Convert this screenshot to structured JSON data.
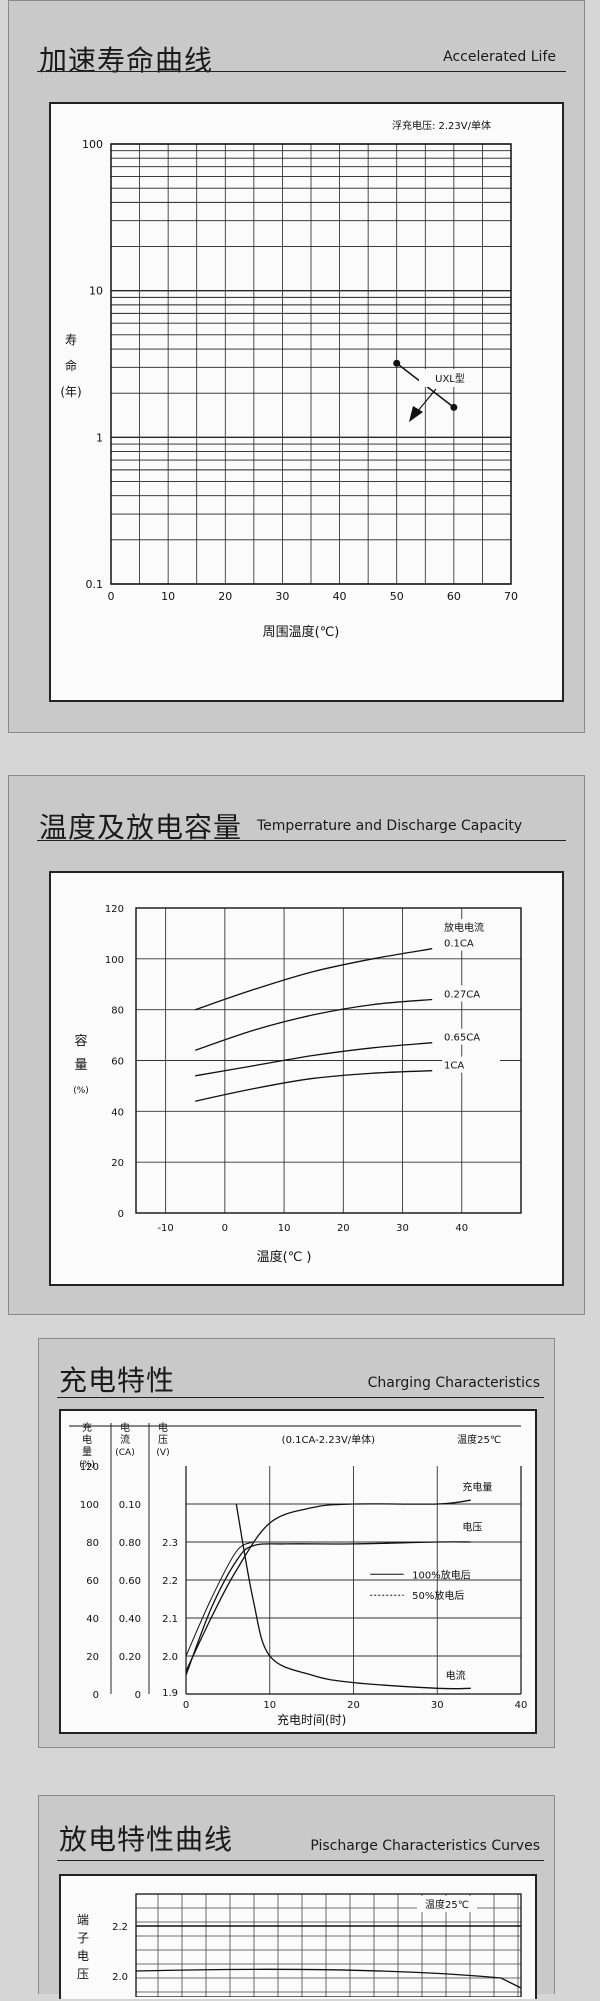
{
  "panels": [
    {
      "title": "加速寿命曲线",
      "subtitle": "Accelerated Life"
    },
    {
      "title": "温度及放电容量",
      "subtitle": "Temperrature and Discharge Capacity"
    },
    {
      "title": "充电特性",
      "subtitle": "Charging Characteristics"
    },
    {
      "title": "放电特性曲线",
      "subtitle": "Pischarge Characteristics Curves"
    }
  ],
  "chart_data": [
    {
      "type": "line",
      "annotation": "浮充电压: 2.23V/单体",
      "ylabel": [
        "寿",
        "命",
        "(年)"
      ],
      "xlabel": "周围温度(℃)",
      "yscale": "log",
      "ylim": [
        0.1,
        100
      ],
      "xlim": [
        0,
        70
      ],
      "y_ticks": [
        "0.1",
        "1",
        "10",
        "100"
      ],
      "x_ticks": [
        "0",
        "10",
        "20",
        "30",
        "40",
        "50",
        "60",
        "70"
      ],
      "grid": true,
      "series": [
        {
          "name": "UXL型",
          "x": [
            50,
            60
          ],
          "y": [
            3.2,
            1.6
          ]
        }
      ]
    },
    {
      "type": "line",
      "xlabel": "温度(℃ )",
      "ylabel": [
        "容",
        "量",
        "(%)"
      ],
      "ylim": [
        0,
        120
      ],
      "xlim": [
        -15,
        50
      ],
      "y_ticks": [
        "0",
        "20",
        "40",
        "60",
        "80",
        "100",
        "120"
      ],
      "x_ticks": [
        "-10",
        "0",
        "10",
        "20",
        "30",
        "40"
      ],
      "legend_title": "放电电流",
      "grid": true,
      "series": [
        {
          "name": "0.1CA",
          "x": [
            -5,
            5,
            15,
            25,
            35
          ],
          "y": [
            80,
            88,
            95,
            100,
            104
          ]
        },
        {
          "name": "0.27CA",
          "x": [
            -5,
            5,
            15,
            25,
            35
          ],
          "y": [
            64,
            72,
            78,
            82,
            84
          ]
        },
        {
          "name": "0.65CA",
          "x": [
            -5,
            5,
            15,
            25,
            35
          ],
          "y": [
            54,
            58,
            62,
            65,
            67
          ]
        },
        {
          "name": "1CA",
          "x": [
            -5,
            5,
            15,
            25,
            35
          ],
          "y": [
            44,
            49,
            53,
            55,
            56
          ]
        }
      ]
    },
    {
      "type": "line",
      "annotation": "(0.1CA-2.23V/单体)",
      "temperature": "温度25℃",
      "xlabel": "充电时间(时)",
      "xlim": [
        0,
        40
      ],
      "x_ticks": [
        "0",
        "10",
        "20",
        "30",
        "40"
      ],
      "y_axes": [
        {
          "label": [
            "充",
            "电",
            "量",
            "(%)"
          ],
          "ticks": [
            "0",
            "20",
            "40",
            "60",
            "80",
            "100",
            "120"
          ]
        },
        {
          "label": [
            "电",
            "流",
            "(CA)"
          ],
          "ticks": [
            "0",
            "0.20",
            "0.40",
            "0.60",
            "0.80",
            "0.10"
          ]
        },
        {
          "label": [
            "电",
            "压",
            "(V)"
          ],
          "ticks": [
            "1.9",
            "2.0",
            "2.1",
            "2.2",
            "2.3"
          ]
        }
      ],
      "legend_lines": [
        "100%放电后",
        "50%放电后"
      ],
      "grid": true,
      "series": [
        {
          "name": "充电量",
          "x": [
            0,
            3,
            6,
            10,
            15,
            20,
            30,
            34
          ],
          "y_pct": [
            12,
            40,
            65,
            90,
            98,
            100,
            100,
            102
          ]
        },
        {
          "name": "电压",
          "x": [
            0,
            3,
            6,
            8,
            12,
            20,
            30,
            34
          ],
          "y_pct": [
            10,
            45,
            70,
            78,
            79,
            79,
            80,
            80
          ]
        },
        {
          "name": "电流",
          "x": [
            6,
            8,
            10,
            15,
            20,
            30,
            34
          ],
          "y_pct": [
            100,
            50,
            20,
            10,
            6,
            3,
            3
          ]
        }
      ]
    },
    {
      "type": "line",
      "temperature": "温度25℃",
      "ylabel": [
        "端",
        "子",
        "电",
        "压"
      ],
      "y_ticks": [
        "2.0",
        "2.2"
      ],
      "grid": true
    }
  ]
}
